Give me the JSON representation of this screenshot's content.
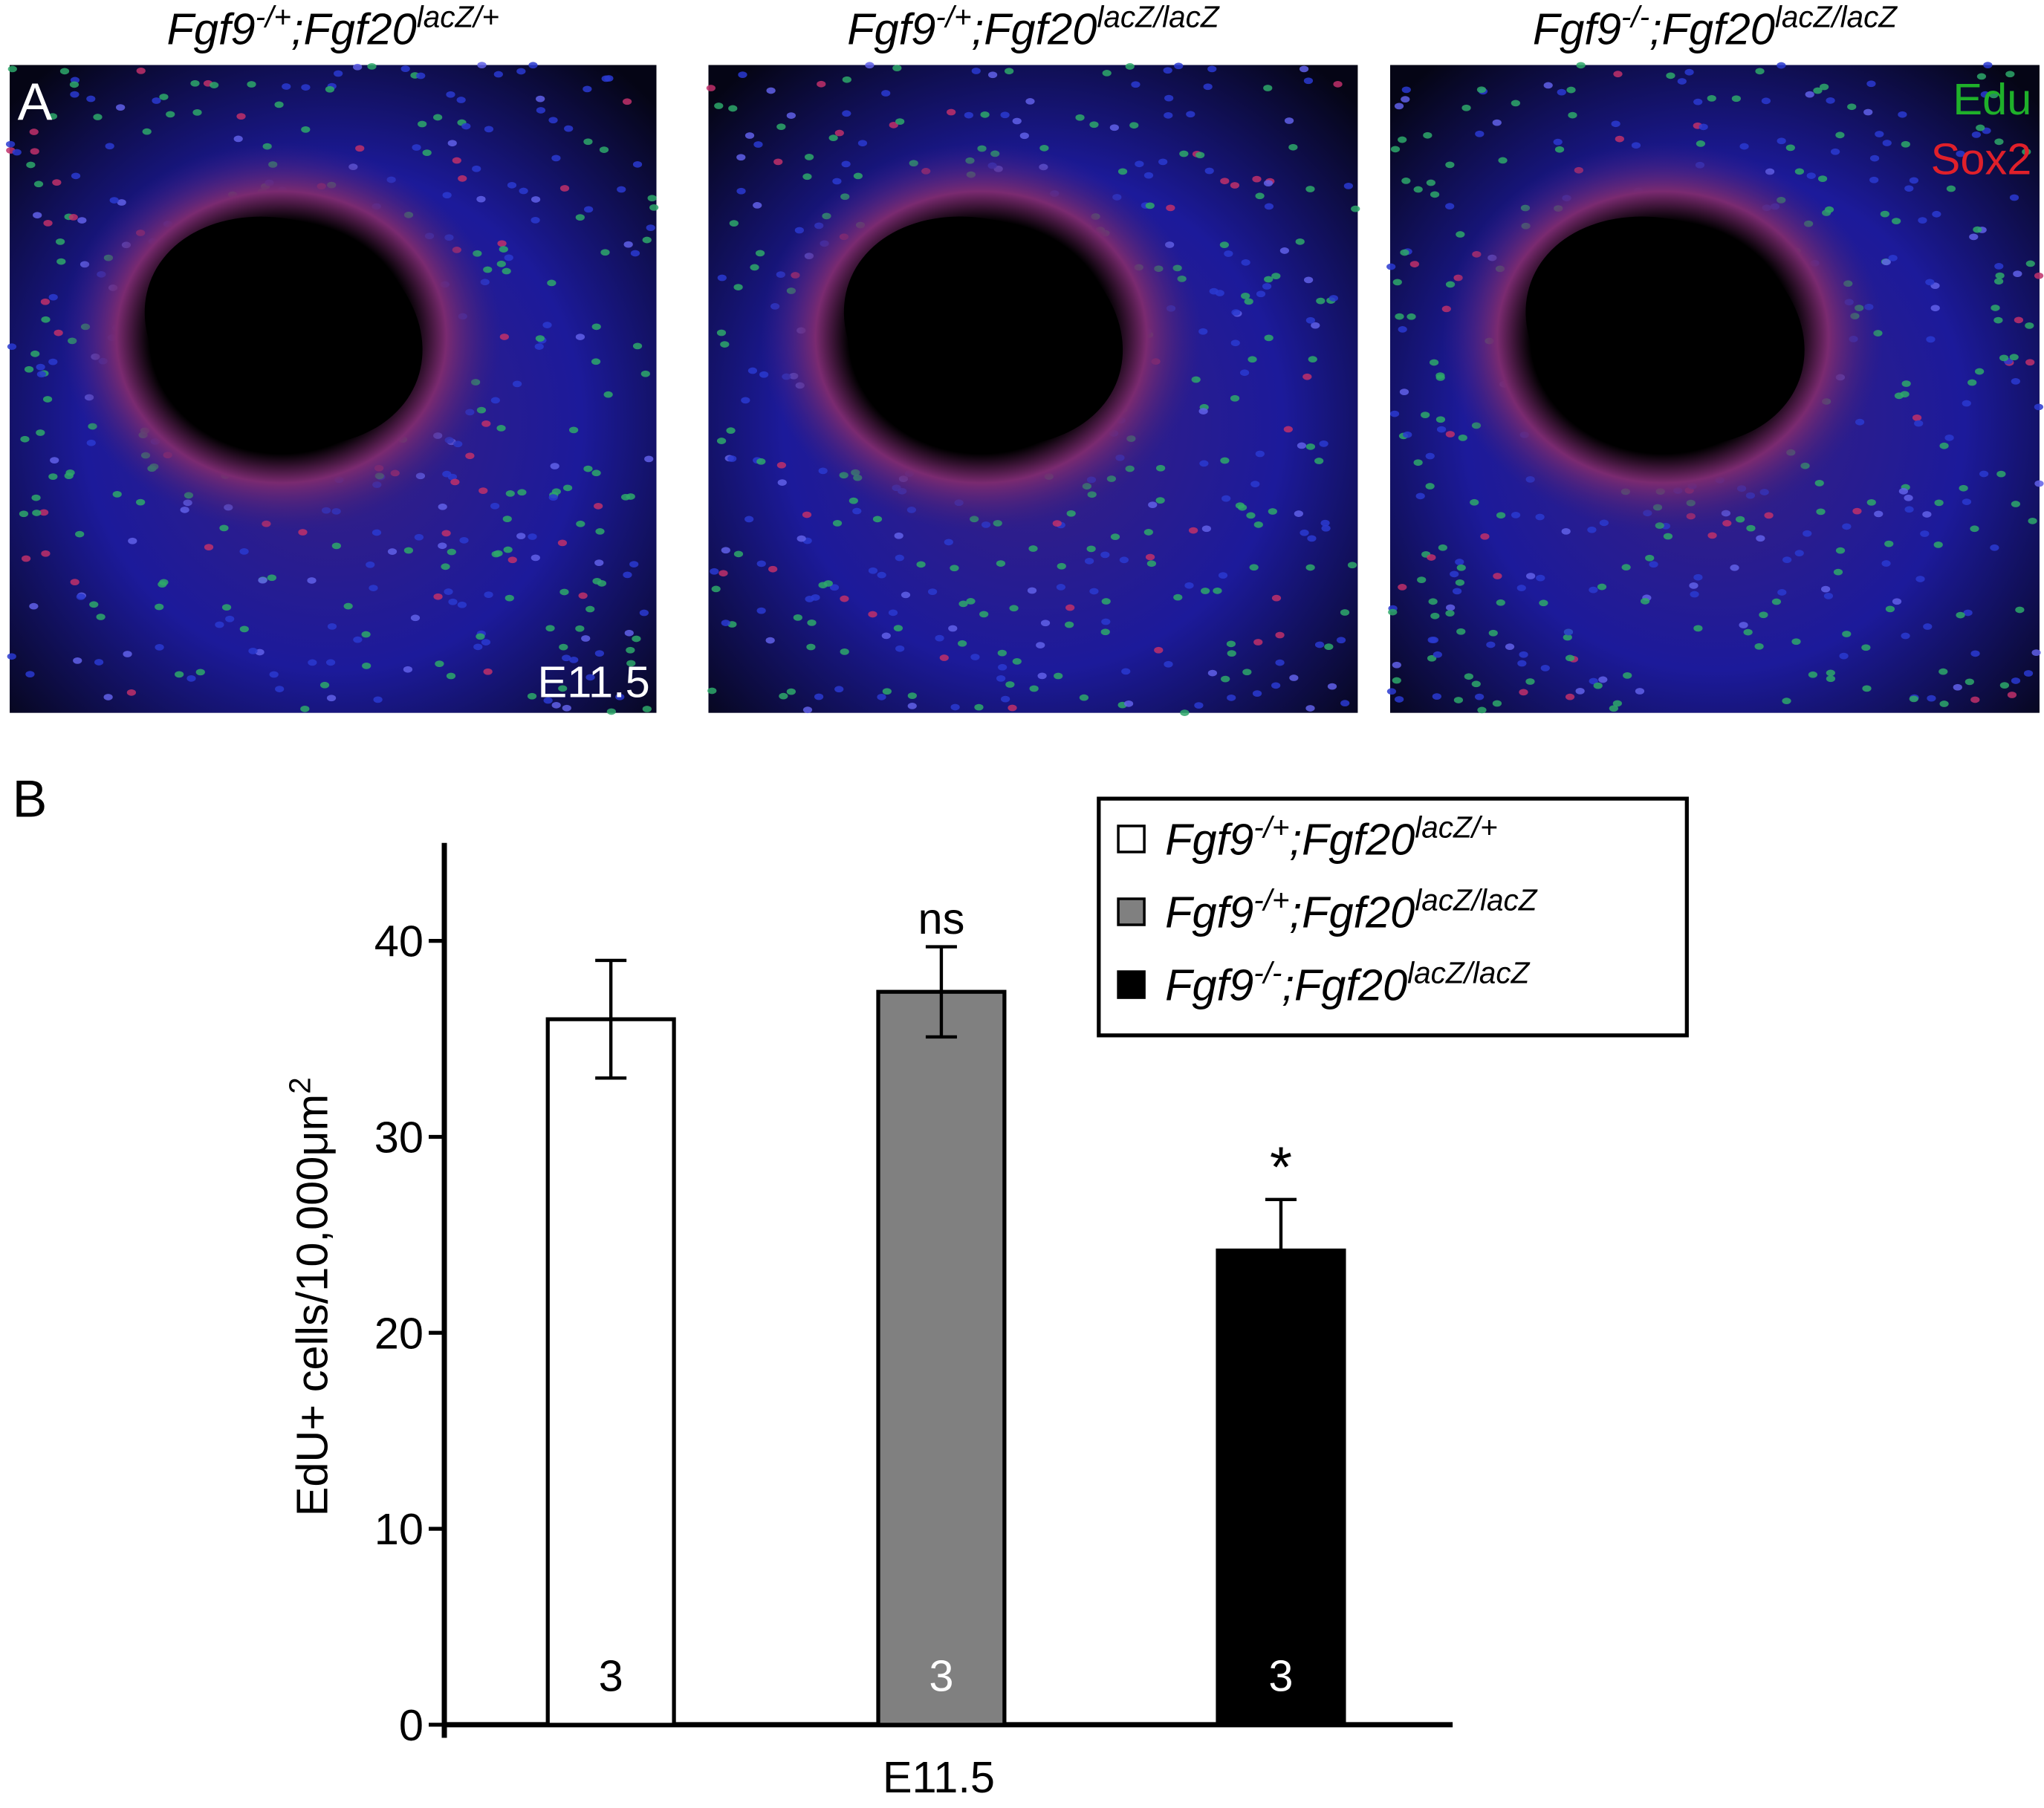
{
  "panel_a": {
    "label": "A",
    "stage": "E11.5",
    "channels": [
      {
        "name": "Edu",
        "color": "#1fb02a"
      },
      {
        "name": "Sox2",
        "color": "#e0202a"
      }
    ],
    "titles": [
      [
        "Fgf9",
        "-/+",
        ";Fgf20",
        "lacZ/+"
      ],
      [
        "Fgf9",
        "-/+",
        ";Fgf20",
        "lacZ/lacZ"
      ],
      [
        "Fgf9",
        "-/-",
        ";Fgf20",
        "lacZ/lacZ"
      ]
    ]
  },
  "chart_data": {
    "type": "bar",
    "panel_label": "B",
    "x_label": "E11.5",
    "y_label": [
      "EdU+ cells/10,000μm",
      "2"
    ],
    "ylim": [
      0,
      45
    ],
    "yticks": [
      0,
      10,
      20,
      30,
      40
    ],
    "series": [
      {
        "name": [
          "Fgf9",
          "-/+",
          ";Fgf20",
          "lacZ/+"
        ],
        "color": "#ffffff",
        "values": [
          36
        ],
        "errors": [
          3.0
        ],
        "n": [
          3
        ],
        "annotation": null
      },
      {
        "name": [
          "Fgf9",
          "-/+",
          ";Fgf20",
          "lacZ/lacZ"
        ],
        "color": "#808080",
        "values": [
          37.4
        ],
        "errors": [
          2.3
        ],
        "n": [
          3
        ],
        "annotation": "ns"
      },
      {
        "name": [
          "Fgf9",
          "-/-",
          ";Fgf20",
          "lacZ/lacZ"
        ],
        "color": "#000000",
        "values": [
          24.2
        ],
        "errors": [
          2.6
        ],
        "n": [
          3
        ],
        "annotation": "*"
      }
    ]
  }
}
